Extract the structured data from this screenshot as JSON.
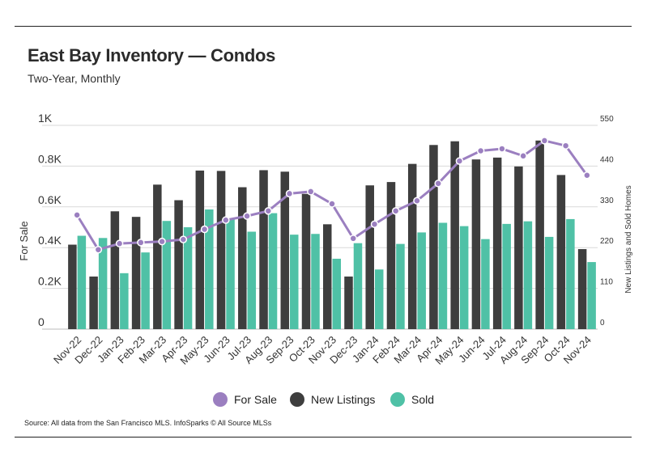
{
  "header": {
    "title": "East Bay Inventory — Condos",
    "subtitle": "Two-Year, Monthly"
  },
  "footer": {
    "source": "Source:  All data from the San Francisco MLS. InfoSparks © All Source MLSs"
  },
  "colors": {
    "for_sale": "#9b7fc0",
    "new_listings": "#3e3e3e",
    "sold": "#4fc1a6",
    "grid": "#d9d9d9"
  },
  "chart_data": {
    "type": "bar",
    "categories": [
      "Nov-22",
      "Dec-22",
      "Jan-23",
      "Feb-23",
      "Mar-23",
      "Apr-23",
      "May-23",
      "Jun-23",
      "Jul-23",
      "Aug-23",
      "Sep-23",
      "Oct-23",
      "Nov-23",
      "Dec-23",
      "Jan-24",
      "Feb-24",
      "Mar-24",
      "Apr-24",
      "May-24",
      "Jun-24",
      "Jul-24",
      "Aug-24",
      "Sep-24",
      "Oct-24",
      "Nov-24"
    ],
    "left_axis": {
      "label": "For Sale",
      "ticks": [
        "0",
        "0.2K",
        "0.4K",
        "0.6K",
        "0.8K",
        "1K"
      ],
      "range": [
        0,
        1000
      ]
    },
    "right_axis": {
      "label": "New Listings and Sold Homes",
      "ticks": [
        "0",
        "110",
        "220",
        "330",
        "440",
        "550"
      ],
      "range": [
        0,
        550
      ]
    },
    "series": [
      {
        "name": "For Sale",
        "kind": "line",
        "axis": "left",
        "values": [
          560,
          390,
          420,
          425,
          430,
          440,
          490,
          535,
          555,
          580,
          665,
          675,
          615,
          445,
          515,
          580,
          630,
          715,
          825,
          875,
          885,
          850,
          925,
          900,
          755
        ]
      },
      {
        "name": "New Listings",
        "kind": "bar",
        "axis": "right",
        "values": [
          228,
          142,
          318,
          303,
          390,
          348,
          428,
          427,
          383,
          429,
          425,
          365,
          283,
          142,
          388,
          397,
          446,
          497,
          507,
          458,
          463,
          439,
          509,
          416,
          216
        ]
      },
      {
        "name": "Sold",
        "kind": "bar",
        "axis": "right",
        "values": [
          252,
          246,
          151,
          207,
          292,
          275,
          323,
          297,
          263,
          313,
          255,
          257,
          190,
          232,
          161,
          230,
          261,
          287,
          278,
          243,
          284,
          291,
          249,
          297,
          181
        ]
      }
    ],
    "legend": [
      "For Sale",
      "New Listings",
      "Sold"
    ],
    "legend_position": "bottom",
    "grid": true
  }
}
